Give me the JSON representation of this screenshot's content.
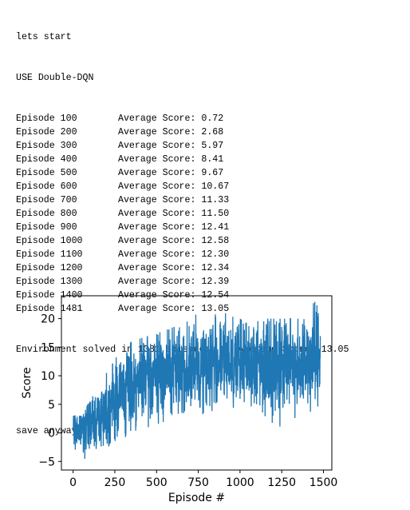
{
  "log": {
    "header_lines": [
      "lets start",
      "USE Double-DQN"
    ],
    "episodes": [
      {
        "label": "Episode 100",
        "score": "Average Score: 0.72"
      },
      {
        "label": "Episode 200",
        "score": "Average Score: 2.68"
      },
      {
        "label": "Episode 300",
        "score": "Average Score: 5.97"
      },
      {
        "label": "Episode 400",
        "score": "Average Score: 8.41"
      },
      {
        "label": "Episode 500",
        "score": "Average Score: 9.67"
      },
      {
        "label": "Episode 600",
        "score": "Average Score: 10.67"
      },
      {
        "label": "Episode 700",
        "score": "Average Score: 11.33"
      },
      {
        "label": "Episode 800",
        "score": "Average Score: 11.50"
      },
      {
        "label": "Episode 900",
        "score": "Average Score: 12.41"
      },
      {
        "label": "Episode 1000",
        "score": "Average Score: 12.58"
      },
      {
        "label": "Episode 1100",
        "score": "Average Score: 12.30"
      },
      {
        "label": "Episode 1200",
        "score": "Average Score: 12.34"
      },
      {
        "label": "Episode 1300",
        "score": "Average Score: 12.39"
      },
      {
        "label": "Episode 1400",
        "score": "Average Score: 12.54"
      },
      {
        "label": "Episode 1481",
        "score": "Average Score: 13.05"
      }
    ],
    "solved_line": "Environment solved in 1381 episodes!\tAverage Score: 13.05",
    "save_line": "save anyway..."
  },
  "chart_data": {
    "type": "line",
    "title": "",
    "xlabel": "Episode #",
    "ylabel": "Score",
    "xlim": [
      -70,
      1550
    ],
    "ylim": [
      -6.5,
      24
    ],
    "xticks": [
      0,
      250,
      500,
      750,
      1000,
      1250,
      1500
    ],
    "yticks": [
      -5,
      0,
      5,
      10,
      15,
      20
    ],
    "grid": false,
    "series": [
      {
        "color": "#1f77b4",
        "x_start": 1,
        "x_end": 1481,
        "window_means": [
          {
            "x": 50,
            "mean": 0.7,
            "low": -5,
            "high": 3
          },
          {
            "x": 150,
            "mean": 2.7,
            "low": -3,
            "high": 8
          },
          {
            "x": 250,
            "mean": 6.0,
            "low": -2,
            "high": 13
          },
          {
            "x": 350,
            "mean": 8.4,
            "low": 0,
            "high": 16
          },
          {
            "x": 450,
            "mean": 9.7,
            "low": 1,
            "high": 17
          },
          {
            "x": 550,
            "mean": 10.7,
            "low": 2,
            "high": 18
          },
          {
            "x": 650,
            "mean": 11.3,
            "low": 3,
            "high": 19
          },
          {
            "x": 750,
            "mean": 11.5,
            "low": 3,
            "high": 21
          },
          {
            "x": 850,
            "mean": 12.4,
            "low": 4,
            "high": 21
          },
          {
            "x": 950,
            "mean": 12.6,
            "low": 4,
            "high": 21
          },
          {
            "x": 1050,
            "mean": 12.3,
            "low": 3,
            "high": 19
          },
          {
            "x": 1150,
            "mean": 12.3,
            "low": 2,
            "high": 20
          },
          {
            "x": 1250,
            "mean": 12.4,
            "low": 1,
            "high": 20
          },
          {
            "x": 1350,
            "mean": 12.5,
            "low": 3,
            "high": 20
          },
          {
            "x": 1450,
            "mean": 13.0,
            "low": 4,
            "high": 23
          }
        ]
      }
    ]
  }
}
